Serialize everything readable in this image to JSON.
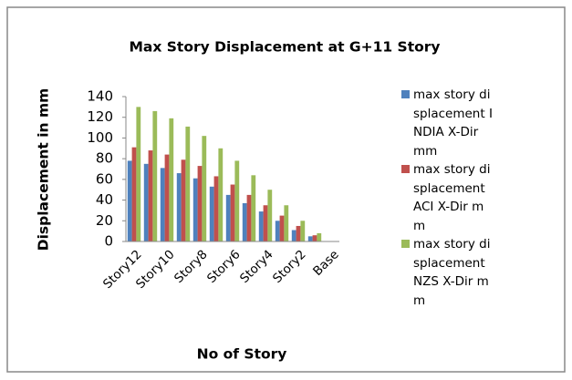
{
  "chart_data": {
    "type": "bar",
    "title": "Max Story Displacement at G+11 Story",
    "x_label": "No of Story",
    "y_label": "Displacement in mm",
    "categories": [
      "Story12",
      null,
      "Story10",
      null,
      "Story8",
      null,
      "Story6",
      null,
      "Story4",
      null,
      "Story2",
      null,
      "Base"
    ],
    "series": [
      {
        "name": "max story displacement INDIA X-Dir mm",
        "color": "#4f81bd",
        "values": [
          78,
          75,
          71,
          66,
          61,
          53,
          45,
          37,
          29,
          20,
          11,
          5,
          0
        ]
      },
      {
        "name": "max story displacement ACI X-Dir mm",
        "color": "#c0504d",
        "values": [
          91,
          88,
          84,
          79,
          73,
          63,
          55,
          45,
          35,
          25,
          15,
          6,
          0
        ]
      },
      {
        "name": "max story displacement NZS X-Dir mm",
        "color": "#9bbb59",
        "values": [
          130,
          126,
          119,
          111,
          102,
          90,
          78,
          64,
          50,
          35,
          20,
          8,
          0
        ]
      }
    ],
    "ylim": [
      0,
      140
    ],
    "yticks": [
      0,
      20,
      40,
      60,
      80,
      100,
      120,
      140
    ],
    "grid": false,
    "legend": "right"
  }
}
